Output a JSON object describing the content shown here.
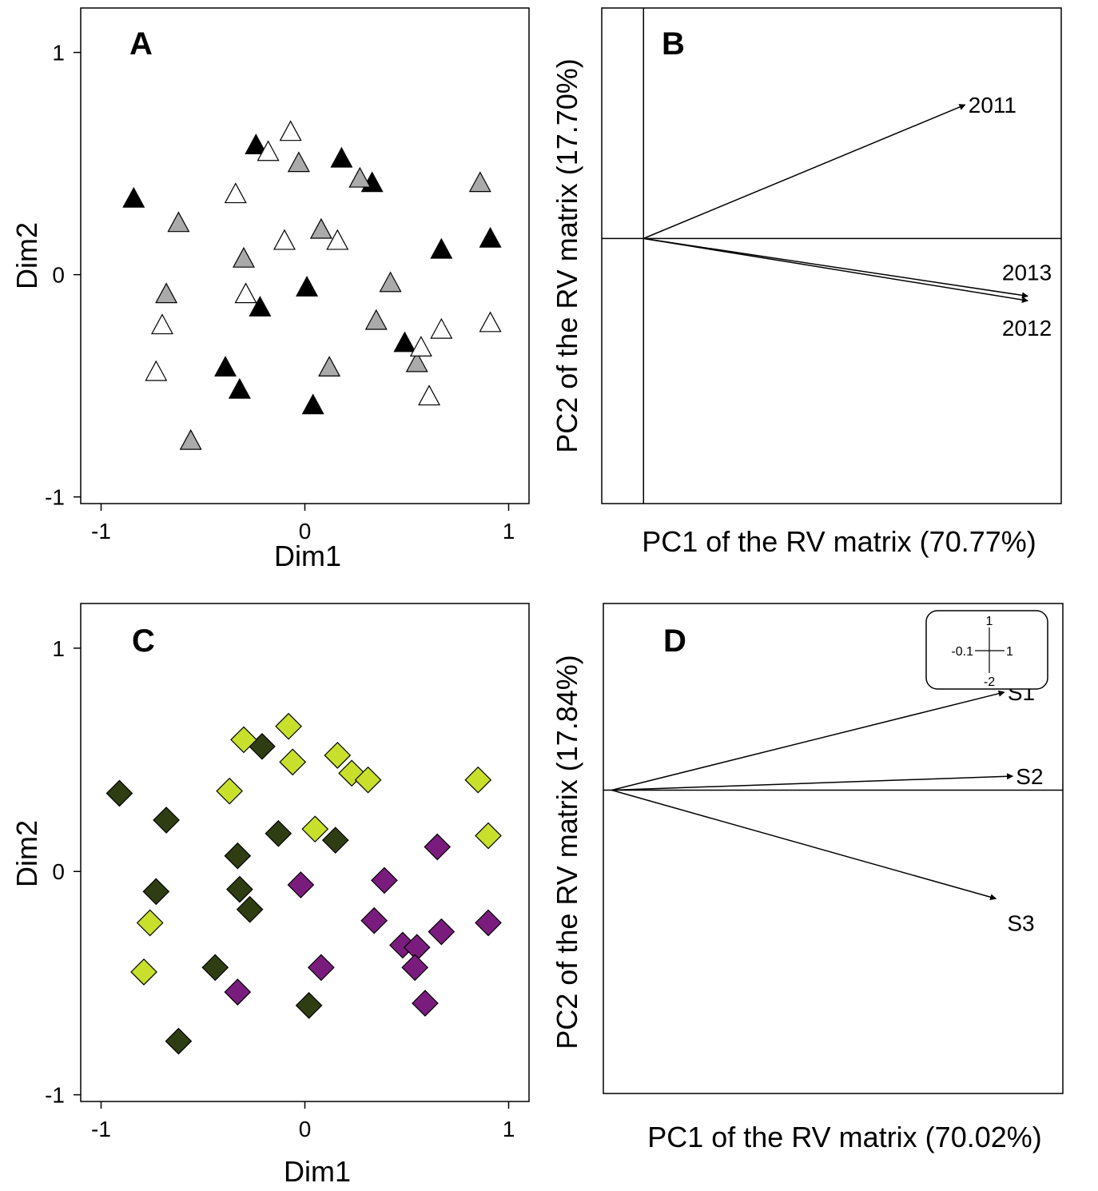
{
  "chart_data": [
    {
      "panel": "A",
      "type": "scatter",
      "marker": "triangle",
      "xlabel": "Dim1",
      "ylabel": "Dim2",
      "xlim": [
        -1.1,
        1.1
      ],
      "ylim": [
        -1.03,
        1.2
      ],
      "xticks": [
        {
          "v": -1,
          "label": "-1"
        },
        {
          "v": 0,
          "label": "0"
        },
        {
          "v": 1,
          "label": "1"
        }
      ],
      "yticks": [
        {
          "v": -1,
          "label": "-1"
        },
        {
          "v": 0,
          "label": "0"
        },
        {
          "v": 1,
          "label": "1"
        }
      ],
      "series": [
        {
          "color": "#000000",
          "points": [
            [
              -0.84,
              0.34
            ],
            [
              -0.24,
              0.58
            ],
            [
              0.18,
              0.52
            ],
            [
              0.33,
              0.41
            ],
            [
              0.67,
              0.11
            ],
            [
              0.91,
              0.16
            ],
            [
              0.01,
              -0.06
            ],
            [
              -0.22,
              -0.15
            ],
            [
              -0.39,
              -0.42
            ],
            [
              -0.32,
              -0.52
            ],
            [
              0.04,
              -0.59
            ],
            [
              0.49,
              -0.31
            ]
          ]
        },
        {
          "color": "#aaaaaa",
          "points": [
            [
              -0.62,
              0.23
            ],
            [
              -0.03,
              0.5
            ],
            [
              0.27,
              0.43
            ],
            [
              0.86,
              0.41
            ],
            [
              0.08,
              0.2
            ],
            [
              -0.3,
              0.07
            ],
            [
              0.42,
              -0.04
            ],
            [
              -0.68,
              -0.09
            ],
            [
              0.35,
              -0.21
            ],
            [
              0.12,
              -0.42
            ],
            [
              0.55,
              -0.4
            ],
            [
              -0.56,
              -0.75
            ]
          ]
        },
        {
          "color": "#ffffff",
          "points": [
            [
              -0.07,
              0.64
            ],
            [
              -0.18,
              0.55
            ],
            [
              -0.34,
              0.36
            ],
            [
              -0.1,
              0.15
            ],
            [
              0.16,
              0.15
            ],
            [
              -0.29,
              -0.09
            ],
            [
              -0.7,
              -0.23
            ],
            [
              -0.73,
              -0.44
            ],
            [
              0.57,
              -0.33
            ],
            [
              0.67,
              -0.25
            ],
            [
              0.91,
              -0.22
            ],
            [
              0.61,
              -0.55
            ]
          ]
        }
      ]
    },
    {
      "panel": "B",
      "type": "biplot",
      "xlabel": "PC1 of the RV matrix (70.77%)",
      "ylabel": "PC2 of the RV matrix (17.70%)",
      "xlim": [
        -0.1,
        1.0
      ],
      "ylim": [
        -1.15,
        1.0
      ],
      "origin": [
        0,
        0
      ],
      "vectors": [
        {
          "label": "2011",
          "x": 0.77,
          "y": 0.58
        },
        {
          "label": "2013",
          "x": 0.92,
          "y": -0.25
        },
        {
          "label": "2012",
          "x": 0.92,
          "y": -0.27
        }
      ]
    },
    {
      "panel": "C",
      "type": "scatter",
      "marker": "diamond",
      "xlabel": "Dim1",
      "ylabel": "Dim2",
      "xlim": [
        -1.1,
        1.1
      ],
      "ylim": [
        -1.03,
        1.2
      ],
      "xticks": [
        {
          "v": -1,
          "label": "-1"
        },
        {
          "v": 0,
          "label": "0"
        },
        {
          "v": 1,
          "label": "1"
        }
      ],
      "yticks": [
        {
          "v": -1,
          "label": "-1"
        },
        {
          "v": 0,
          "label": "0"
        },
        {
          "v": 1,
          "label": "1"
        }
      ],
      "series": [
        {
          "color": "#2f3d13",
          "points": [
            [
              -0.91,
              0.35
            ],
            [
              -0.68,
              0.23
            ],
            [
              -0.21,
              0.56
            ],
            [
              -0.13,
              0.17
            ],
            [
              0.15,
              0.14
            ],
            [
              -0.33,
              0.07
            ],
            [
              -0.73,
              -0.09
            ],
            [
              -0.32,
              -0.08
            ],
            [
              -0.27,
              -0.17
            ],
            [
              -0.44,
              -0.43
            ],
            [
              0.02,
              -0.6
            ],
            [
              -0.62,
              -0.76
            ]
          ]
        },
        {
          "color": "#c8e02c",
          "points": [
            [
              -0.3,
              0.59
            ],
            [
              -0.08,
              0.65
            ],
            [
              -0.06,
              0.49
            ],
            [
              0.16,
              0.52
            ],
            [
              0.23,
              0.44
            ],
            [
              0.31,
              0.41
            ],
            [
              0.85,
              0.41
            ],
            [
              0.9,
              0.16
            ],
            [
              -0.37,
              0.36
            ],
            [
              0.05,
              0.19
            ],
            [
              -0.76,
              -0.23
            ],
            [
              -0.79,
              -0.45
            ]
          ]
        },
        {
          "color": "#7a1c7d",
          "points": [
            [
              0.65,
              0.11
            ],
            [
              -0.02,
              -0.06
            ],
            [
              0.39,
              -0.04
            ],
            [
              0.34,
              -0.22
            ],
            [
              0.48,
              -0.33
            ],
            [
              0.55,
              -0.34
            ],
            [
              0.54,
              -0.43
            ],
            [
              0.67,
              -0.27
            ],
            [
              0.9,
              -0.23
            ],
            [
              0.08,
              -0.43
            ],
            [
              0.59,
              -0.59
            ],
            [
              -0.33,
              -0.54
            ]
          ]
        }
      ]
    },
    {
      "panel": "D",
      "type": "biplot",
      "xlabel": "PC1 of the RV matrix (70.02%)",
      "ylabel": "PC2 of the RV matrix (17.84%)",
      "xlim": [
        -0.1,
        1.0
      ],
      "ylim": [
        -2.6,
        1.6
      ],
      "origin": [
        -0.08,
        0
      ],
      "vectors": [
        {
          "label": "S1",
          "x": 0.86,
          "y": 0.84
        },
        {
          "label": "S2",
          "x": 0.88,
          "y": 0.12
        },
        {
          "label": "S3",
          "x": 0.84,
          "y": -0.93
        }
      ],
      "scale_inset": {
        "top": "1",
        "bottom": "-2",
        "left": "-0.1",
        "right": "1"
      }
    }
  ],
  "panels": {
    "A": {
      "letter": "A"
    },
    "B": {
      "letter": "B"
    },
    "C": {
      "letter": "C"
    },
    "D": {
      "letter": "D"
    }
  }
}
